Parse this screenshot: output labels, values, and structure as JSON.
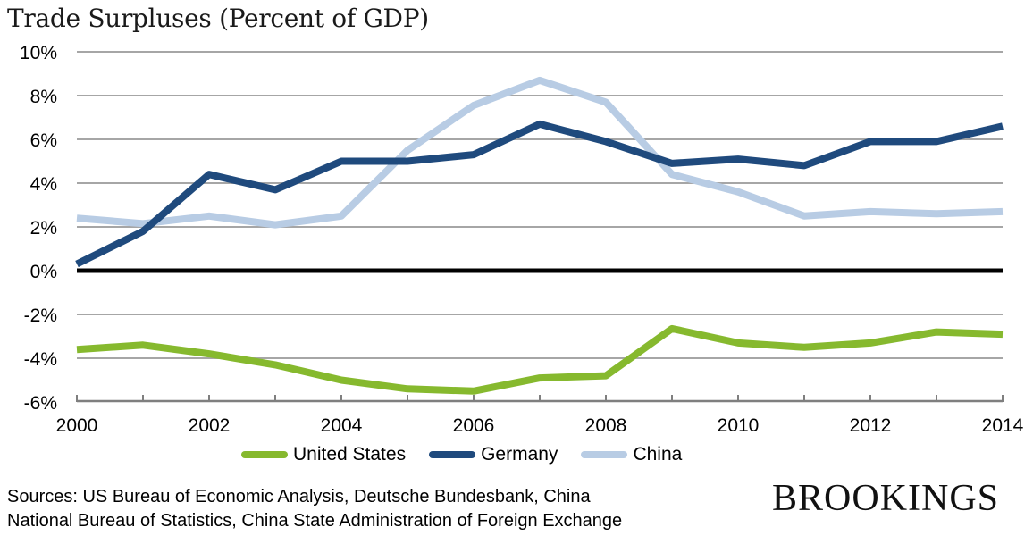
{
  "chart_data": {
    "type": "line",
    "title": "Trade Surpluses (Percent of GDP)",
    "xlabel": "",
    "ylabel": "",
    "x": [
      2000,
      2001,
      2002,
      2003,
      2004,
      2005,
      2006,
      2007,
      2008,
      2009,
      2010,
      2011,
      2012,
      2013,
      2014
    ],
    "x_tick_labels": [
      "2000",
      "2002",
      "2004",
      "2006",
      "2008",
      "2010",
      "2012",
      "2014"
    ],
    "x_tick_values": [
      2000,
      2002,
      2004,
      2006,
      2008,
      2010,
      2012,
      2014
    ],
    "xlim": [
      2000,
      2014
    ],
    "ylim": [
      -6,
      10
    ],
    "y_ticks": [
      -6,
      -4,
      -2,
      0,
      2,
      4,
      6,
      8,
      10
    ],
    "y_tick_labels": [
      "-6%",
      "-4%",
      "-2%",
      "0%",
      "2%",
      "4%",
      "6%",
      "8%",
      "10%"
    ],
    "grid": true,
    "legend_position": "bottom",
    "series": [
      {
        "name": "United States",
        "color": "#86b92e",
        "values": [
          -3.6,
          -3.4,
          -3.8,
          -4.3,
          -5.0,
          -5.4,
          -5.5,
          -4.9,
          -4.8,
          -2.65,
          -3.3,
          -3.5,
          -3.3,
          -2.8,
          -2.9
        ]
      },
      {
        "name": "Germany",
        "color": "#1f4a7d",
        "values": [
          0.3,
          1.8,
          4.4,
          3.7,
          5.0,
          5.0,
          5.3,
          6.7,
          5.9,
          4.9,
          5.1,
          4.8,
          5.9,
          5.9,
          6.6
        ]
      },
      {
        "name": "China",
        "color": "#b8cce4",
        "values": [
          2.4,
          2.15,
          2.5,
          2.1,
          2.5,
          5.5,
          7.55,
          8.7,
          7.7,
          4.4,
          3.6,
          2.5,
          2.7,
          2.6,
          2.7
        ]
      }
    ],
    "zero_line": true
  },
  "footer": {
    "sources_line1": "Sources: US Bureau of Economic Analysis, Deutsche Bundesbank, China",
    "sources_line2": "National Bureau of Statistics, China State Administration of Foreign Exchange",
    "brand": "BROOKINGS"
  }
}
